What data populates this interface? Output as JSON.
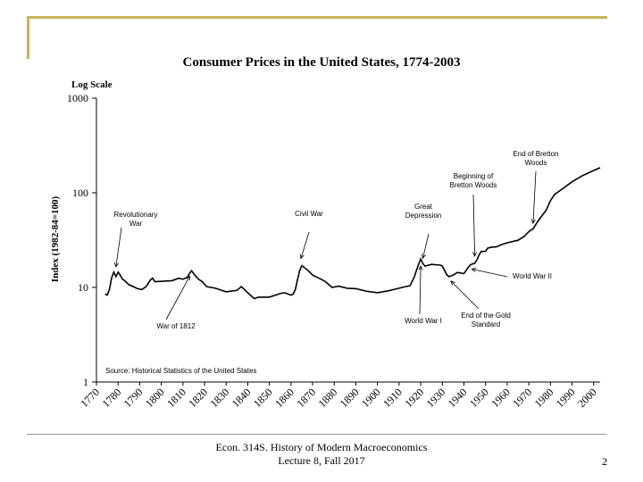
{
  "footer": {
    "line1": "Econ. 314S. History of Modern Macroeconomics",
    "line2": "Lecture 8, Fall 2017",
    "page": "2"
  },
  "chart_data": {
    "type": "line",
    "title": "Consumer Prices in the United States, 1774-2003",
    "ylabel": "Index (1982-84=100)",
    "scale_label": "Log Scale",
    "y_scale": "log",
    "ylim": [
      1,
      1000
    ],
    "xlim": [
      1770,
      2003
    ],
    "y_ticks": [
      1,
      10,
      100,
      1000
    ],
    "y_tick_labels": [
      "1",
      "10",
      "100",
      "1000"
    ],
    "x_ticks": [
      1770,
      1780,
      1790,
      1800,
      1810,
      1820,
      1830,
      1840,
      1850,
      1860,
      1870,
      1880,
      1890,
      1900,
      1910,
      1920,
      1930,
      1940,
      1950,
      1960,
      1970,
      1980,
      1990,
      2000
    ],
    "x_tick_labels": [
      "1770",
      "1780",
      "1790",
      "1800",
      "1810",
      "1820",
      "1830",
      "1840",
      "1850",
      "1860",
      "1870",
      "1880",
      "1890",
      "1900",
      "1910",
      "1920",
      "1930",
      "1940",
      "1950",
      "1960",
      "1970",
      "1980",
      "1990",
      "2000"
    ],
    "source": "Source: Historical Statistics of the United States",
    "series": [
      {
        "x": [
          1774,
          1775,
          1776,
          1777,
          1778,
          1779,
          1780,
          1781,
          1782,
          1783,
          1785,
          1787,
          1789,
          1791,
          1793,
          1795,
          1796,
          1797,
          1800,
          1805,
          1808,
          1810,
          1812,
          1813,
          1814,
          1815,
          1817,
          1819,
          1821,
          1825,
          1830,
          1835,
          1837,
          1840,
          1843,
          1845,
          1850,
          1855,
          1857,
          1860,
          1861,
          1862,
          1863,
          1864,
          1865,
          1866,
          1868,
          1870,
          1873,
          1876,
          1879,
          1882,
          1886,
          1890,
          1895,
          1900,
          1905,
          1910,
          1913,
          1915,
          1917,
          1918,
          1919,
          1920,
          1921,
          1922,
          1925,
          1929,
          1930,
          1932,
          1933,
          1935,
          1937,
          1940,
          1942,
          1943,
          1945,
          1946,
          1947,
          1948,
          1950,
          1951,
          1953,
          1955,
          1957,
          1960,
          1965,
          1968,
          1970,
          1972,
          1974,
          1976,
          1978,
          1980,
          1982,
          1985,
          1990,
          1995,
          2000,
          2003
        ],
        "values": [
          8.5,
          8.3,
          9.5,
          12.5,
          14.5,
          13.0,
          14.5,
          13.5,
          12.3,
          11.8,
          10.7,
          10.2,
          9.7,
          9.5,
          10.2,
          12.0,
          12.5,
          11.5,
          11.6,
          11.8,
          12.5,
          12.2,
          12.8,
          14.0,
          15.0,
          14.0,
          12.3,
          11.5,
          10.2,
          9.8,
          9.0,
          9.3,
          10.2,
          8.8,
          7.6,
          7.9,
          7.9,
          8.6,
          8.8,
          8.3,
          8.5,
          9.5,
          12.0,
          15.0,
          17.0,
          16.3,
          15.0,
          13.5,
          12.5,
          11.5,
          10.0,
          10.3,
          9.8,
          9.7,
          9.1,
          8.8,
          9.2,
          9.8,
          10.2,
          10.4,
          12.8,
          15.0,
          17.5,
          20.0,
          17.9,
          16.8,
          17.5,
          17.2,
          16.8,
          13.7,
          13.0,
          13.5,
          14.4,
          14.0,
          16.3,
          17.4,
          18.0,
          19.5,
          22.0,
          24.0,
          24.1,
          26.0,
          26.7,
          26.8,
          28.1,
          29.6,
          31.5,
          34.8,
          38.8,
          41.8,
          49.3,
          56.9,
          65.2,
          82.4,
          96.5,
          107.6,
          130.7,
          152.4,
          172.2,
          184.0
        ]
      }
    ],
    "annotations": [
      {
        "lines": [
          "Revolutionary",
          "War"
        ],
        "x": 1779,
        "y": 14.5
      },
      {
        "lines": [
          "War of 1812"
        ],
        "x": 1814,
        "y": 15.0
      },
      {
        "lines": [
          "Civil War"
        ],
        "x": 1865,
        "y": 17.0
      },
      {
        "lines": [
          "Great",
          "Depression"
        ],
        "x": 1932,
        "y": 13.7
      },
      {
        "lines": [
          "World War I"
        ],
        "x": 1920,
        "y": 20.0
      },
      {
        "lines": [
          "Beginning of",
          "Bretton Woods"
        ],
        "x": 1945,
        "y": 18.0
      },
      {
        "lines": [
          "End of the Gold",
          "Standard"
        ],
        "x": 1934,
        "y": 13.3
      },
      {
        "lines": [
          "World War II"
        ],
        "x": 1942,
        "y": 16.3
      },
      {
        "lines": [
          "End of Bretton",
          "Woods"
        ],
        "x": 1972,
        "y": 41.8
      }
    ]
  }
}
